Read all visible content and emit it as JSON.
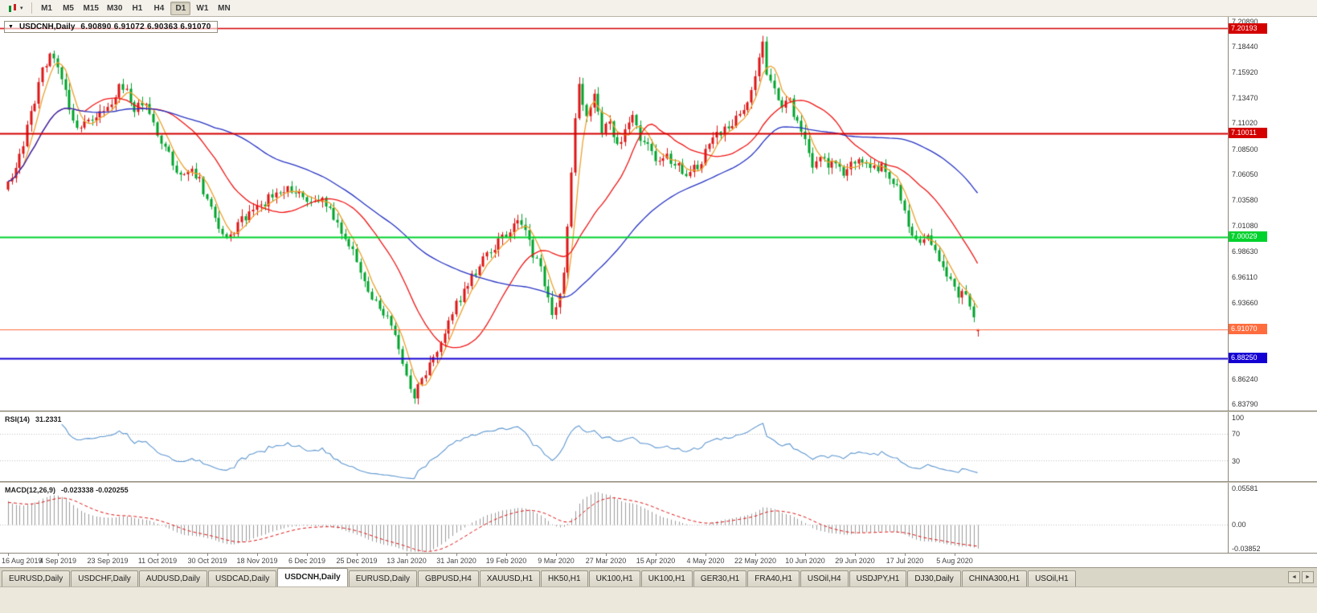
{
  "icons": {
    "collapse_triangle": "▼",
    "toolbar_dropdown": "▾",
    "tab_scroll_left": "◄",
    "tab_scroll_right": "►"
  },
  "toolbar": {
    "timeframes": [
      "M1",
      "M5",
      "M15",
      "M30",
      "H1",
      "H4",
      "D1",
      "W1",
      "MN"
    ],
    "active_timeframe": "D1"
  },
  "chart": {
    "symbol_title": "USDCNH,Daily",
    "ohlc_text": "6.90890 6.91072 6.90363 6.91070",
    "ohlc": {
      "open": "6.90890",
      "high": "6.91072",
      "low": "6.90363",
      "close": "6.91070"
    },
    "y_min": 6.832,
    "y_max": 7.2124,
    "price_ticks": [
      "7.20890",
      "7.18440",
      "7.15920",
      "7.13470",
      "7.11020",
      "7.08500",
      "7.06050",
      "7.03580",
      "7.01080",
      "6.98630",
      "6.96110",
      "6.93660",
      "6.86240",
      "6.83790"
    ],
    "levels": [
      {
        "label": "7.20193",
        "price": 7.20193,
        "color": "#d40000",
        "width": 1.4
      },
      {
        "label": "7.10011",
        "price": 7.10011,
        "color": "#d40000",
        "width": 2
      },
      {
        "label": "7.00029",
        "price": 7.00029,
        "color": "#00d22d",
        "width": 2
      },
      {
        "label": "6.91070",
        "price": 6.9107,
        "color": "#ff6d3f",
        "width": 1.2
      },
      {
        "label": "6.88250",
        "price": 6.8825,
        "color": "#1400d2",
        "width": 2
      }
    ]
  },
  "chart_data": {
    "type": "candlestick",
    "title": "USDCNH Daily",
    "bars": 254,
    "x_label_every_bars": 13,
    "x_labels": [
      "16 Aug 2019",
      "4 Sep 2019",
      "23 Sep 2019",
      "11 Oct 2019",
      "30 Oct 2019",
      "18 Nov 2019",
      "6 Dec 2019",
      "25 Dec 2019",
      "13 Jan 2020",
      "31 Jan 2020",
      "19 Feb 2020",
      "9 Mar 2020",
      "27 Mar 2020",
      "15 Apr 2020",
      "4 May 2020",
      "22 May 2020",
      "10 Jun 2020",
      "29 Jun 2020",
      "17 Jul 2020",
      "5 Aug 2020"
    ],
    "price_path": [
      [
        0,
        7.052
      ],
      [
        3,
        7.078
      ],
      [
        6,
        7.118
      ],
      [
        9,
        7.162
      ],
      [
        11,
        7.178
      ],
      [
        13,
        7.165
      ],
      [
        15,
        7.138
      ],
      [
        18,
        7.104
      ],
      [
        20,
        7.112
      ],
      [
        23,
        7.117
      ],
      [
        26,
        7.123
      ],
      [
        29,
        7.146
      ],
      [
        31,
        7.14
      ],
      [
        33,
        7.123
      ],
      [
        35,
        7.131
      ],
      [
        37,
        7.121
      ],
      [
        39,
        7.099
      ],
      [
        42,
        7.078
      ],
      [
        45,
        7.061
      ],
      [
        48,
        7.066
      ],
      [
        50,
        7.055
      ],
      [
        53,
        7.028
      ],
      [
        56,
        7.002
      ],
      [
        58,
        6.999
      ],
      [
        61,
        7.016
      ],
      [
        64,
        7.03
      ],
      [
        67,
        7.034
      ],
      [
        70,
        7.043
      ],
      [
        73,
        7.048
      ],
      [
        76,
        7.041
      ],
      [
        79,
        7.033
      ],
      [
        82,
        7.039
      ],
      [
        85,
        7.017
      ],
      [
        88,
        6.997
      ],
      [
        91,
        6.977
      ],
      [
        94,
        6.951
      ],
      [
        97,
        6.93
      ],
      [
        100,
        6.915
      ],
      [
        103,
        6.876
      ],
      [
        106,
        6.845
      ],
      [
        108,
        6.863
      ],
      [
        111,
        6.883
      ],
      [
        114,
        6.908
      ],
      [
        117,
        6.934
      ],
      [
        120,
        6.956
      ],
      [
        123,
        6.972
      ],
      [
        126,
        6.986
      ],
      [
        129,
        7.0
      ],
      [
        131,
        7.008
      ],
      [
        133,
        7.016
      ],
      [
        135,
        7.004
      ],
      [
        137,
        6.984
      ],
      [
        139,
        6.967
      ],
      [
        141,
        6.937
      ],
      [
        142,
        6.921
      ],
      [
        143,
        6.931
      ],
      [
        145,
        6.963
      ],
      [
        147,
        7.062
      ],
      [
        148,
        7.116
      ],
      [
        149,
        7.147
      ],
      [
        151,
        7.117
      ],
      [
        153,
        7.134
      ],
      [
        155,
        7.1
      ],
      [
        157,
        7.112
      ],
      [
        159,
        7.088
      ],
      [
        161,
        7.101
      ],
      [
        163,
        7.116
      ],
      [
        165,
        7.097
      ],
      [
        167,
        7.087
      ],
      [
        169,
        7.071
      ],
      [
        172,
        7.078
      ],
      [
        175,
        7.067
      ],
      [
        178,
        7.061
      ],
      [
        181,
        7.074
      ],
      [
        183,
        7.094
      ],
      [
        186,
        7.101
      ],
      [
        189,
        7.112
      ],
      [
        192,
        7.127
      ],
      [
        194,
        7.141
      ],
      [
        196,
        7.177
      ],
      [
        197,
        7.19
      ],
      [
        198,
        7.157
      ],
      [
        200,
        7.147
      ],
      [
        202,
        7.124
      ],
      [
        204,
        7.131
      ],
      [
        206,
        7.111
      ],
      [
        208,
        7.091
      ],
      [
        210,
        7.071
      ],
      [
        212,
        7.081
      ],
      [
        214,
        7.067
      ],
      [
        216,
        7.075
      ],
      [
        218,
        7.061
      ],
      [
        220,
        7.071
      ],
      [
        222,
        7.077
      ],
      [
        224,
        7.071
      ],
      [
        226,
        7.065
      ],
      [
        228,
        7.071
      ],
      [
        230,
        7.059
      ],
      [
        232,
        7.051
      ],
      [
        234,
        7.021
      ],
      [
        236,
        7.001
      ],
      [
        238,
        6.991
      ],
      [
        240,
        7.001
      ],
      [
        242,
        6.987
      ],
      [
        244,
        6.971
      ],
      [
        246,
        6.959
      ],
      [
        248,
        6.944
      ],
      [
        250,
        6.947
      ],
      [
        251,
        6.933
      ],
      [
        252,
        6.921
      ],
      [
        253,
        6.911
      ]
    ],
    "colors": {
      "bull": "#dd1515",
      "bear": "#00a42c"
    },
    "moving_averages": [
      {
        "period": 5,
        "color": "#eda12d"
      },
      {
        "period": 21,
        "color": "#f21515"
      },
      {
        "period": 55,
        "color": "#2633c4"
      }
    ],
    "rsi": {
      "name": "RSI(14)",
      "value": "31.2331",
      "color": "#5e97d0",
      "scale_ticks": [
        "100",
        "70",
        "30"
      ],
      "levels": [
        70,
        30
      ],
      "range": [
        0,
        100
      ]
    },
    "macd": {
      "name": "MACD(12,26,9)",
      "value": "-0.023338 -0.020255",
      "scale_ticks": [
        "0.05581",
        "0.00",
        "-0.03852"
      ],
      "range": [
        -0.03852,
        0.05581
      ],
      "histogram_color": "#9b9b9b",
      "signal_color": "#e01414"
    }
  },
  "tabs": {
    "items": [
      "EURUSD,Daily",
      "USDCHF,Daily",
      "AUDUSD,Daily",
      "USDCAD,Daily",
      "USDCNH,Daily",
      "EURUSD,Daily",
      "GBPUSD,H4",
      "XAUUSD,H1",
      "HK50,H1",
      "UK100,H1",
      "UK100,H1",
      "GER30,H1",
      "FRA40,H1",
      "USOil,H4",
      "USDJPY,H1",
      "DJ30,Daily",
      "CHINA300,H1",
      "USOil,H1"
    ],
    "active_index": 4
  }
}
